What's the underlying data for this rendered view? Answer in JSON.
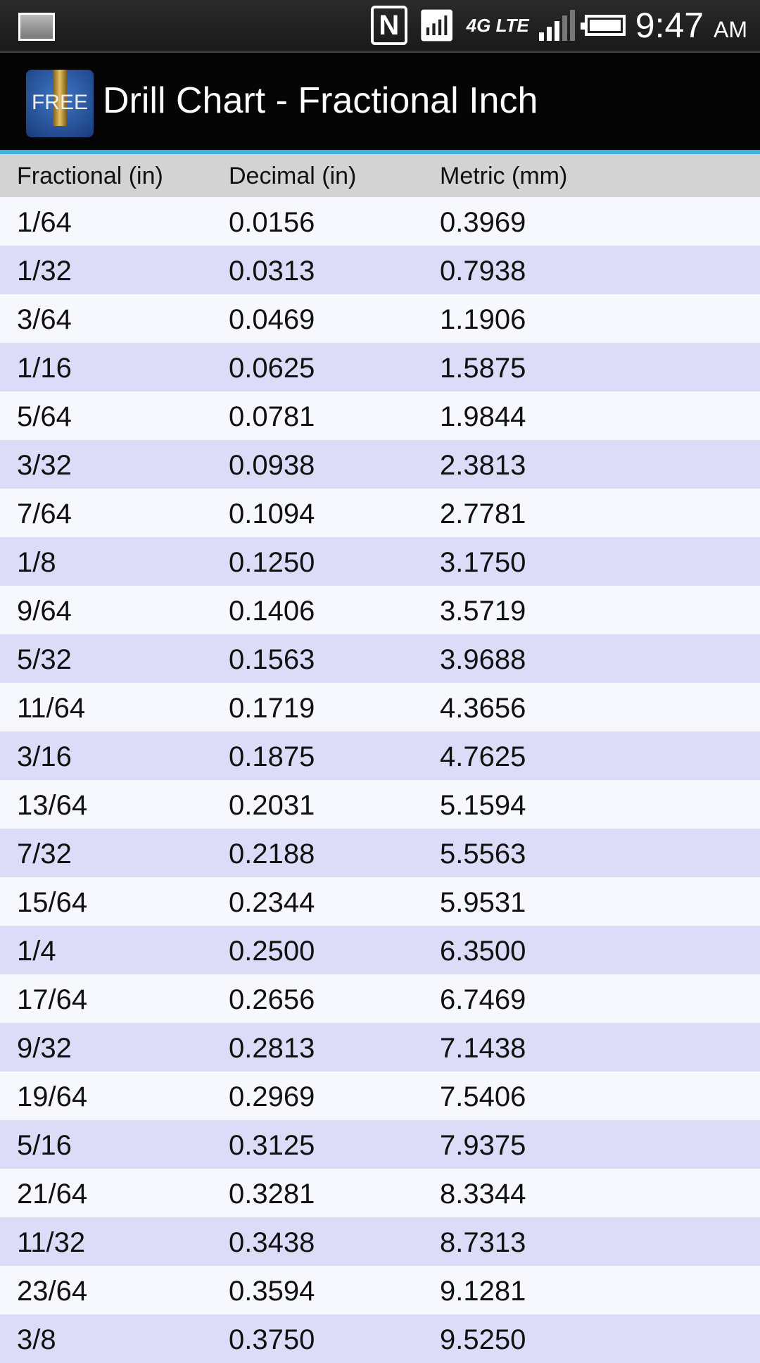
{
  "status_bar": {
    "time": "9:47",
    "ampm": "AM",
    "network": "4G LTE",
    "icons": [
      "gallery-notification-icon",
      "nfc-icon",
      "wifi-icon",
      "lte-icon",
      "signal-icon",
      "battery-icon"
    ]
  },
  "app_bar": {
    "title": "Drill Chart - Fractional Inch",
    "icon_text": "FREE"
  },
  "colors": {
    "accent": "#3fb1e3",
    "row_even": "#f7f8fd",
    "row_odd": "#dcdcf8",
    "header_bg": "#d3d3d3"
  },
  "table": {
    "headers": [
      "Fractional (in)",
      "Decimal (in)",
      "Metric (mm)"
    ],
    "rows": [
      [
        "1/64",
        "0.0156",
        "0.3969"
      ],
      [
        "1/32",
        "0.0313",
        "0.7938"
      ],
      [
        "3/64",
        "0.0469",
        "1.1906"
      ],
      [
        "1/16",
        "0.0625",
        "1.5875"
      ],
      [
        "5/64",
        "0.0781",
        "1.9844"
      ],
      [
        "3/32",
        "0.0938",
        "2.3813"
      ],
      [
        "7/64",
        "0.1094",
        "2.7781"
      ],
      [
        "1/8",
        "0.1250",
        "3.1750"
      ],
      [
        "9/64",
        "0.1406",
        "3.5719"
      ],
      [
        "5/32",
        "0.1563",
        "3.9688"
      ],
      [
        "11/64",
        "0.1719",
        "4.3656"
      ],
      [
        "3/16",
        "0.1875",
        "4.7625"
      ],
      [
        "13/64",
        "0.2031",
        "5.1594"
      ],
      [
        "7/32",
        "0.2188",
        "5.5563"
      ],
      [
        "15/64",
        "0.2344",
        "5.9531"
      ],
      [
        "1/4",
        "0.2500",
        "6.3500"
      ],
      [
        "17/64",
        "0.2656",
        "6.7469"
      ],
      [
        "9/32",
        "0.2813",
        "7.1438"
      ],
      [
        "19/64",
        "0.2969",
        "7.5406"
      ],
      [
        "5/16",
        "0.3125",
        "7.9375"
      ],
      [
        "21/64",
        "0.3281",
        "8.3344"
      ],
      [
        "11/32",
        "0.3438",
        "8.7313"
      ],
      [
        "23/64",
        "0.3594",
        "9.1281"
      ],
      [
        "3/8",
        "0.3750",
        "9.5250"
      ]
    ]
  }
}
